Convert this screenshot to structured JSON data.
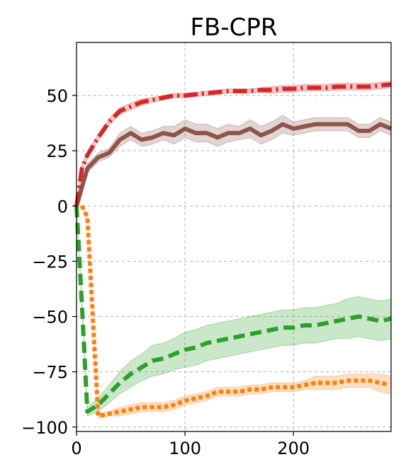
{
  "chart_data": {
    "type": "line",
    "title": "FB-CPR",
    "xlabel": "",
    "ylabel": "",
    "xlim": [
      0,
      290
    ],
    "ylim": [
      -102,
      74
    ],
    "x_ticks": [
      0,
      100,
      200
    ],
    "x_tick_labels": [
      "0",
      "100",
      "200"
    ],
    "y_ticks": [
      50,
      25,
      0,
      -25,
      -50,
      -75,
      -100
    ],
    "y_tick_labels": [
      "50",
      "25",
      "0",
      "−25",
      "−50",
      "−75",
      "−100"
    ],
    "grid": true,
    "series": [
      {
        "color": "#d62728",
        "dash": "dashdot",
        "x": [
          0,
          5,
          10,
          20,
          30,
          40,
          50,
          60,
          70,
          80,
          90,
          100,
          110,
          120,
          130,
          140,
          150,
          160,
          170,
          180,
          190,
          200,
          210,
          220,
          230,
          240,
          250,
          260,
          270,
          280,
          290
        ],
        "y": [
          0,
          17,
          23,
          31,
          38,
          43,
          45,
          47,
          48,
          49,
          50,
          50,
          50.5,
          51,
          51.5,
          52,
          52,
          52,
          52.5,
          52.5,
          53,
          53,
          53.5,
          53.5,
          53.5,
          54,
          54,
          54,
          54,
          54.5,
          55
        ],
        "band": [
          0,
          1.5,
          1.5,
          1.5,
          1.5,
          1.5,
          1.5,
          1.5,
          1,
          1,
          1,
          1,
          1,
          1,
          1,
          1,
          1,
          1,
          1,
          1.5,
          1.5,
          1.5,
          1.5,
          1.5,
          1.5,
          1.5,
          1.5,
          1.5,
          1.5,
          1.5,
          1.5
        ]
      },
      {
        "color": "#8c564b",
        "dash": "solid",
        "x": [
          0,
          10,
          20,
          30,
          40,
          50,
          60,
          70,
          80,
          90,
          100,
          110,
          120,
          130,
          140,
          150,
          160,
          170,
          180,
          190,
          200,
          210,
          220,
          230,
          240,
          250,
          260,
          270,
          280,
          290
        ],
        "y": [
          0,
          17,
          22,
          24,
          30,
          33,
          30,
          31,
          33,
          32,
          35,
          33,
          33,
          31,
          33,
          33,
          35,
          32,
          34,
          37,
          35,
          36,
          37,
          37,
          37,
          37,
          34,
          34,
          37,
          35
        ],
        "band": [
          0,
          2,
          2,
          2,
          3,
          3,
          3,
          3,
          3,
          4,
          4,
          4,
          4,
          4,
          4,
          3,
          4,
          4,
          4,
          4,
          3,
          3,
          3,
          3,
          3,
          3,
          3,
          3,
          3,
          3
        ]
      },
      {
        "color": "#2ca02c",
        "dash": "dashed",
        "x": [
          0,
          5,
          10,
          20,
          30,
          40,
          50,
          60,
          70,
          80,
          90,
          100,
          110,
          120,
          130,
          140,
          150,
          160,
          170,
          180,
          190,
          200,
          210,
          220,
          230,
          240,
          250,
          260,
          270,
          280,
          290
        ],
        "y": [
          0,
          -45,
          -93,
          -90,
          -85,
          -80,
          -76,
          -73,
          -70,
          -69,
          -67,
          -65,
          -64,
          -62,
          -61,
          -60,
          -59,
          -58,
          -57,
          -56,
          -55,
          -55,
          -54,
          -54,
          -53,
          -52,
          -51,
          -50,
          -51,
          -52,
          -51
        ],
        "band": [
          0,
          2,
          2,
          3,
          4,
          5,
          6,
          6,
          7,
          7,
          7,
          8,
          8,
          8,
          8,
          8,
          8,
          8,
          8,
          8,
          8,
          8,
          8,
          8,
          8,
          8,
          9,
          9,
          9,
          9,
          9
        ]
      },
      {
        "color": "#ff7f0e",
        "dash": "dotted",
        "x": [
          0,
          5,
          10,
          20,
          30,
          40,
          50,
          60,
          70,
          80,
          90,
          100,
          110,
          120,
          130,
          140,
          150,
          160,
          170,
          180,
          190,
          200,
          210,
          220,
          230,
          240,
          250,
          260,
          270,
          280,
          290
        ],
        "y": [
          0,
          0,
          -5,
          -95,
          -94,
          -93,
          -92,
          -91,
          -91,
          -91,
          -90,
          -88,
          -87,
          -86,
          -84,
          -84,
          -84,
          -83,
          -83,
          -82,
          -82,
          -82,
          -81,
          -80,
          -80,
          -80,
          -79,
          -79,
          -79,
          -80,
          -81
        ],
        "band": [
          0,
          0,
          1,
          1,
          1,
          2,
          2,
          2,
          2,
          2,
          2,
          2,
          2,
          2,
          2,
          2,
          2,
          2,
          2,
          2,
          2,
          2,
          2,
          3,
          3,
          3,
          3,
          3,
          3,
          4,
          4
        ]
      }
    ]
  }
}
